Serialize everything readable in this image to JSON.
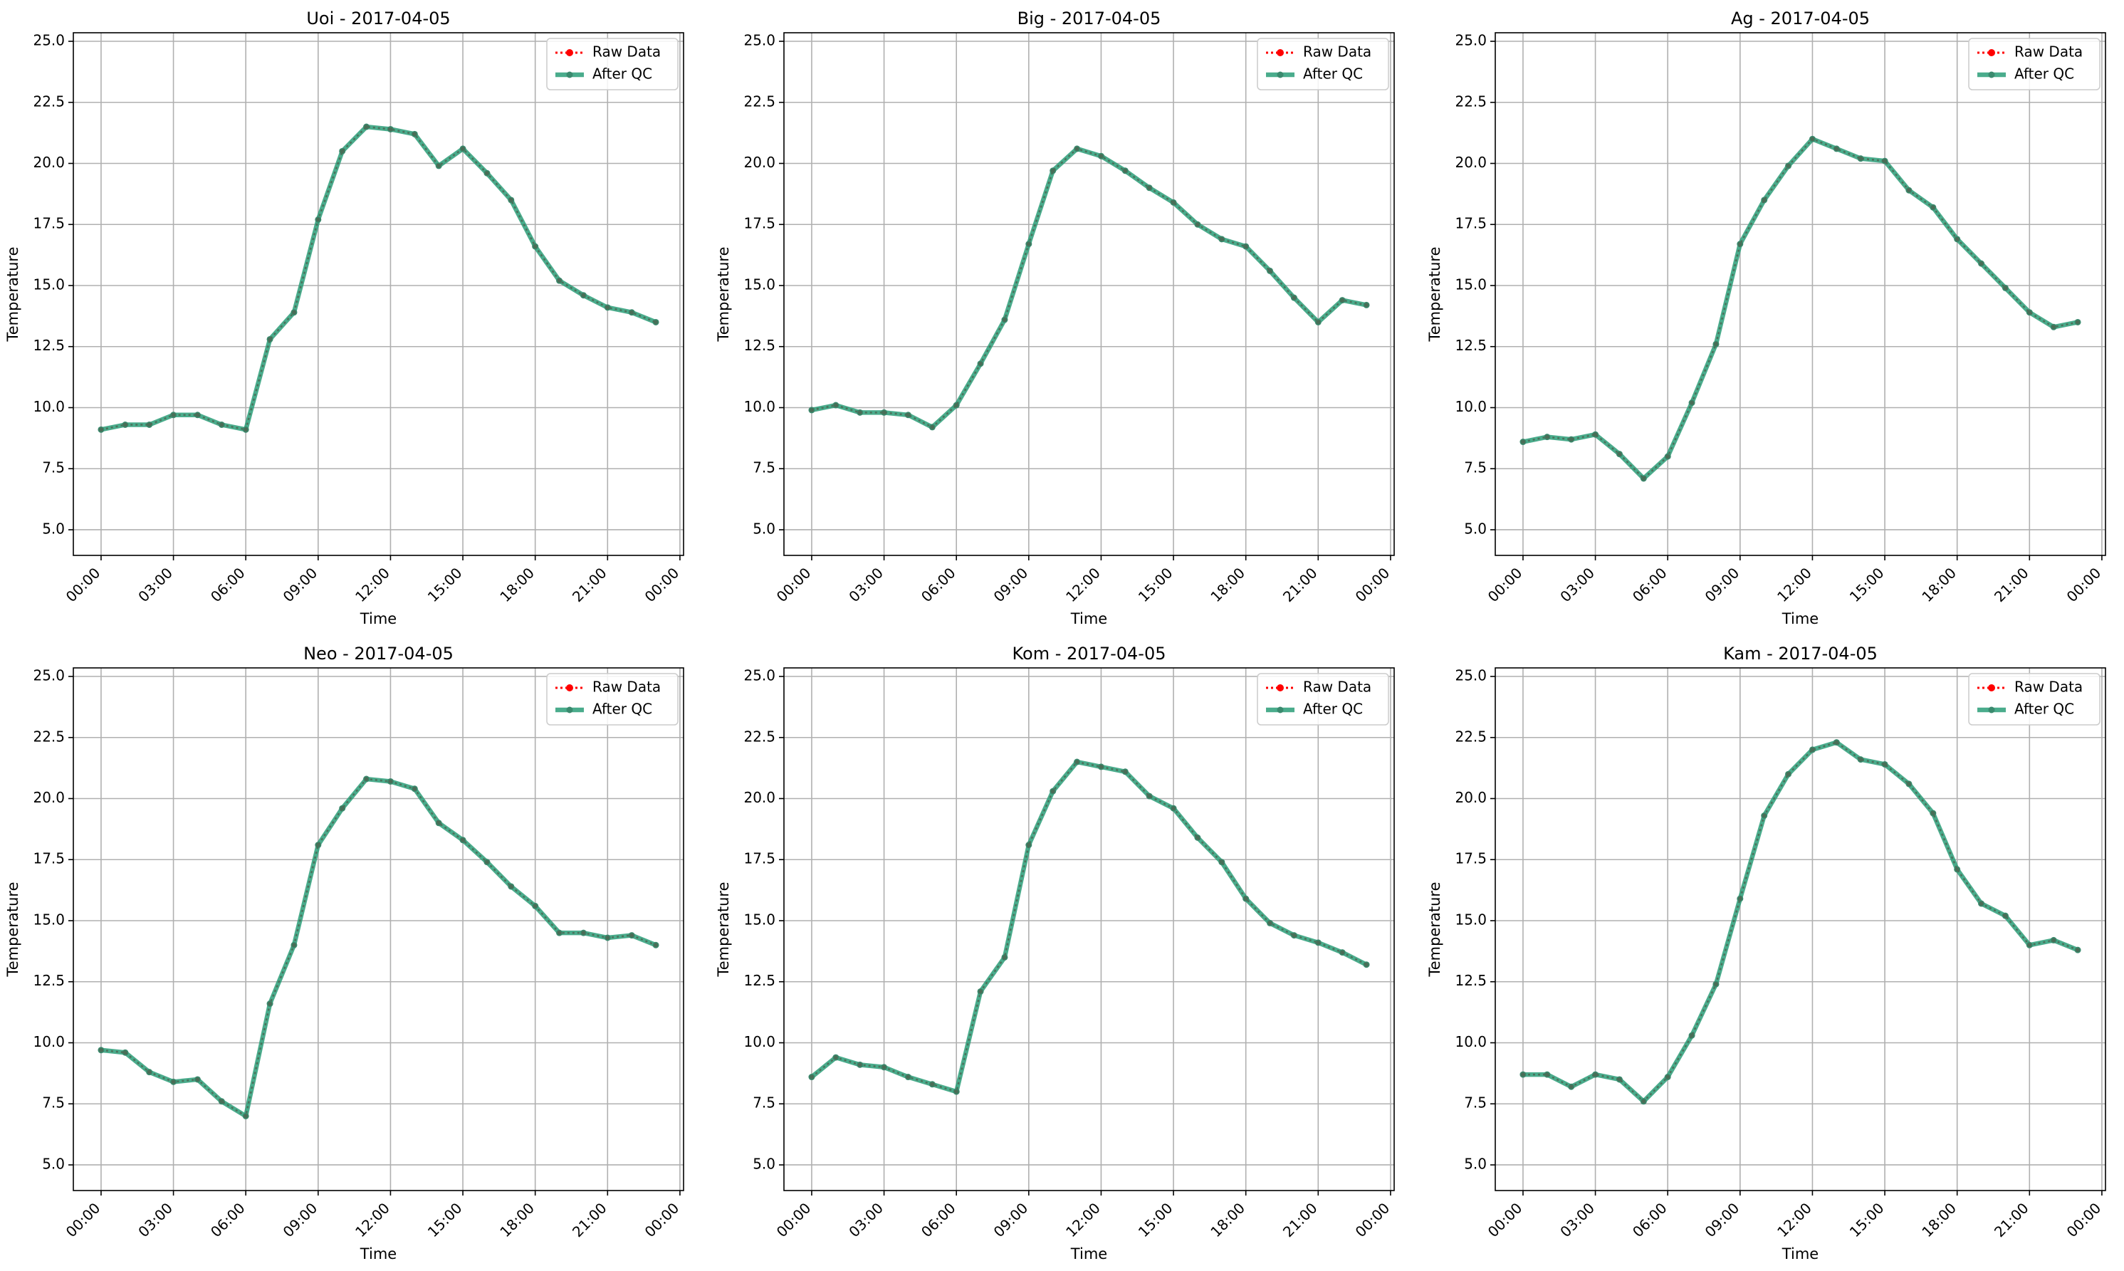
{
  "legend": {
    "raw_label": "Raw Data",
    "qc_label": "After QC"
  },
  "colors": {
    "raw": "#ff0000",
    "qc": "#2a9d78",
    "qc_marker": "#3a8a6e",
    "overlap": "#4a6b55",
    "grid": "#b0b0b0",
    "axis": "#000000"
  },
  "chart_data": [
    {
      "type": "line",
      "title": "Uoi - 2017-04-05",
      "xlabel": "Time",
      "ylabel": "Temperature",
      "xlim": [
        -1.15,
        24.15
      ],
      "ylim": [
        3.95,
        25.35
      ],
      "grid": true,
      "legend_position": "top-right",
      "xtick_values": [
        0,
        3,
        6,
        9,
        12,
        15,
        18,
        21,
        24
      ],
      "xtick_labels": [
        "00:00",
        "03:00",
        "06:00",
        "09:00",
        "12:00",
        "15:00",
        "18:00",
        "21:00",
        "00:00"
      ],
      "ytick_values": [
        5.0,
        7.5,
        10.0,
        12.5,
        15.0,
        17.5,
        20.0,
        22.5,
        25.0
      ],
      "ytick_labels": [
        "5.0",
        "7.5",
        "10.0",
        "12.5",
        "15.0",
        "17.5",
        "20.0",
        "22.5",
        "25.0"
      ],
      "x": [
        0,
        1,
        2,
        3,
        4,
        5,
        6,
        7,
        8,
        9,
        10,
        11,
        12,
        13,
        14,
        15,
        16,
        17,
        18,
        19,
        20,
        21,
        22,
        23
      ],
      "series": [
        {
          "name": "Raw Data",
          "values": [
            9.1,
            9.3,
            9.3,
            9.7,
            9.7,
            9.3,
            9.1,
            12.8,
            13.9,
            17.7,
            20.5,
            21.5,
            21.4,
            21.2,
            19.9,
            20.6,
            19.6,
            18.5,
            16.6,
            15.2,
            14.6,
            14.1,
            13.9,
            13.5
          ]
        },
        {
          "name": "After QC",
          "values": [
            9.1,
            9.3,
            9.3,
            9.7,
            9.7,
            9.3,
            9.1,
            12.8,
            13.9,
            17.7,
            20.5,
            21.5,
            21.4,
            21.2,
            19.9,
            20.6,
            19.6,
            18.5,
            16.6,
            15.2,
            14.6,
            14.1,
            13.9,
            13.5
          ]
        }
      ]
    },
    {
      "type": "line",
      "title": "Big - 2017-04-05",
      "xlabel": "Time",
      "ylabel": "Temperature",
      "xlim": [
        -1.15,
        24.15
      ],
      "ylim": [
        3.95,
        25.35
      ],
      "grid": true,
      "legend_position": "top-right",
      "xtick_values": [
        0,
        3,
        6,
        9,
        12,
        15,
        18,
        21,
        24
      ],
      "xtick_labels": [
        "00:00",
        "03:00",
        "06:00",
        "09:00",
        "12:00",
        "15:00",
        "18:00",
        "21:00",
        "00:00"
      ],
      "ytick_values": [
        5.0,
        7.5,
        10.0,
        12.5,
        15.0,
        17.5,
        20.0,
        22.5,
        25.0
      ],
      "ytick_labels": [
        "5.0",
        "7.5",
        "10.0",
        "12.5",
        "15.0",
        "17.5",
        "20.0",
        "22.5",
        "25.0"
      ],
      "x": [
        0,
        1,
        2,
        3,
        4,
        5,
        6,
        7,
        8,
        9,
        10,
        11,
        12,
        13,
        14,
        15,
        16,
        17,
        18,
        19,
        20,
        21,
        22,
        23
      ],
      "series": [
        {
          "name": "Raw Data",
          "values": [
            9.9,
            10.1,
            9.8,
            9.8,
            9.7,
            9.2,
            10.1,
            11.8,
            13.6,
            16.7,
            19.7,
            20.6,
            20.3,
            19.7,
            19.0,
            18.4,
            17.5,
            16.9,
            16.6,
            15.6,
            14.5,
            13.5,
            14.4,
            14.2
          ]
        },
        {
          "name": "After QC",
          "values": [
            9.9,
            10.1,
            9.8,
            9.8,
            9.7,
            9.2,
            10.1,
            11.8,
            13.6,
            16.7,
            19.7,
            20.6,
            20.3,
            19.7,
            19.0,
            18.4,
            17.5,
            16.9,
            16.6,
            15.6,
            14.5,
            13.5,
            14.4,
            14.2
          ]
        }
      ]
    },
    {
      "type": "line",
      "title": "Ag - 2017-04-05",
      "xlabel": "Time",
      "ylabel": "Temperature",
      "xlim": [
        -1.15,
        24.15
      ],
      "ylim": [
        3.95,
        25.35
      ],
      "grid": true,
      "legend_position": "top-right",
      "xtick_values": [
        0,
        3,
        6,
        9,
        12,
        15,
        18,
        21,
        24
      ],
      "xtick_labels": [
        "00:00",
        "03:00",
        "06:00",
        "09:00",
        "12:00",
        "15:00",
        "18:00",
        "21:00",
        "00:00"
      ],
      "ytick_values": [
        5.0,
        7.5,
        10.0,
        12.5,
        15.0,
        17.5,
        20.0,
        22.5,
        25.0
      ],
      "ytick_labels": [
        "5.0",
        "7.5",
        "10.0",
        "12.5",
        "15.0",
        "17.5",
        "20.0",
        "22.5",
        "25.0"
      ],
      "x": [
        0,
        1,
        2,
        3,
        4,
        5,
        6,
        7,
        8,
        9,
        10,
        11,
        12,
        13,
        14,
        15,
        16,
        17,
        18,
        19,
        20,
        21,
        22,
        23
      ],
      "series": [
        {
          "name": "Raw Data",
          "values": [
            8.6,
            8.8,
            8.7,
            8.9,
            8.1,
            7.1,
            8.0,
            10.2,
            12.6,
            16.7,
            18.5,
            19.9,
            21.0,
            20.6,
            20.2,
            20.1,
            18.9,
            18.2,
            16.9,
            15.9,
            14.9,
            13.9,
            13.3,
            13.5
          ]
        },
        {
          "name": "After QC",
          "values": [
            8.6,
            8.8,
            8.7,
            8.9,
            8.1,
            7.1,
            8.0,
            10.2,
            12.6,
            16.7,
            18.5,
            19.9,
            21.0,
            20.6,
            20.2,
            20.1,
            18.9,
            18.2,
            16.9,
            15.9,
            14.9,
            13.9,
            13.3,
            13.5
          ]
        }
      ]
    },
    {
      "type": "line",
      "title": "Neo - 2017-04-05",
      "xlabel": "Time",
      "ylabel": "Temperature",
      "xlim": [
        -1.15,
        24.15
      ],
      "ylim": [
        3.95,
        25.35
      ],
      "grid": true,
      "legend_position": "top-right",
      "xtick_values": [
        0,
        3,
        6,
        9,
        12,
        15,
        18,
        21,
        24
      ],
      "xtick_labels": [
        "00:00",
        "03:00",
        "06:00",
        "09:00",
        "12:00",
        "15:00",
        "18:00",
        "21:00",
        "00:00"
      ],
      "ytick_values": [
        5.0,
        7.5,
        10.0,
        12.5,
        15.0,
        17.5,
        20.0,
        22.5,
        25.0
      ],
      "ytick_labels": [
        "5.0",
        "7.5",
        "10.0",
        "12.5",
        "15.0",
        "17.5",
        "20.0",
        "22.5",
        "25.0"
      ],
      "x": [
        0,
        1,
        2,
        3,
        4,
        5,
        6,
        7,
        8,
        9,
        10,
        11,
        12,
        13,
        14,
        15,
        16,
        17,
        18,
        19,
        20,
        21,
        22,
        23
      ],
      "series": [
        {
          "name": "Raw Data",
          "values": [
            9.7,
            9.6,
            8.8,
            8.4,
            8.5,
            7.6,
            7.0,
            11.6,
            14.0,
            18.1,
            19.6,
            20.8,
            20.7,
            20.4,
            19.0,
            18.3,
            17.4,
            16.4,
            15.6,
            14.5,
            14.5,
            14.3,
            14.4,
            14.0
          ]
        },
        {
          "name": "After QC",
          "values": [
            9.7,
            9.6,
            8.8,
            8.4,
            8.5,
            7.6,
            7.0,
            11.6,
            14.0,
            18.1,
            19.6,
            20.8,
            20.7,
            20.4,
            19.0,
            18.3,
            17.4,
            16.4,
            15.6,
            14.5,
            14.5,
            14.3,
            14.4,
            14.0
          ]
        }
      ]
    },
    {
      "type": "line",
      "title": "Kom - 2017-04-05",
      "xlabel": "Time",
      "ylabel": "Temperature",
      "xlim": [
        -1.15,
        24.15
      ],
      "ylim": [
        3.95,
        25.35
      ],
      "grid": true,
      "legend_position": "top-right",
      "xtick_values": [
        0,
        3,
        6,
        9,
        12,
        15,
        18,
        21,
        24
      ],
      "xtick_labels": [
        "00:00",
        "03:00",
        "06:00",
        "09:00",
        "12:00",
        "15:00",
        "18:00",
        "21:00",
        "00:00"
      ],
      "ytick_values": [
        5.0,
        7.5,
        10.0,
        12.5,
        15.0,
        17.5,
        20.0,
        22.5,
        25.0
      ],
      "ytick_labels": [
        "5.0",
        "7.5",
        "10.0",
        "12.5",
        "15.0",
        "17.5",
        "20.0",
        "22.5",
        "25.0"
      ],
      "x": [
        0,
        1,
        2,
        3,
        4,
        5,
        6,
        7,
        8,
        9,
        10,
        11,
        12,
        13,
        14,
        15,
        16,
        17,
        18,
        19,
        20,
        21,
        22,
        23
      ],
      "series": [
        {
          "name": "Raw Data",
          "values": [
            8.6,
            9.4,
            9.1,
            9.0,
            8.6,
            8.3,
            8.0,
            12.1,
            13.5,
            18.1,
            20.3,
            21.5,
            21.3,
            21.1,
            20.1,
            19.6,
            18.4,
            17.4,
            15.9,
            14.9,
            14.4,
            14.1,
            13.7,
            13.2
          ]
        },
        {
          "name": "After QC",
          "values": [
            8.6,
            9.4,
            9.1,
            9.0,
            8.6,
            8.3,
            8.0,
            12.1,
            13.5,
            18.1,
            20.3,
            21.5,
            21.3,
            21.1,
            20.1,
            19.6,
            18.4,
            17.4,
            15.9,
            14.9,
            14.4,
            14.1,
            13.7,
            13.2
          ]
        }
      ]
    },
    {
      "type": "line",
      "title": "Kam - 2017-04-05",
      "xlabel": "Time",
      "ylabel": "Temperature",
      "xlim": [
        -1.15,
        24.15
      ],
      "ylim": [
        3.95,
        25.35
      ],
      "grid": true,
      "legend_position": "top-right",
      "xtick_values": [
        0,
        3,
        6,
        9,
        12,
        15,
        18,
        21,
        24
      ],
      "xtick_labels": [
        "00:00",
        "03:00",
        "06:00",
        "09:00",
        "12:00",
        "15:00",
        "18:00",
        "21:00",
        "00:00"
      ],
      "ytick_values": [
        5.0,
        7.5,
        10.0,
        12.5,
        15.0,
        17.5,
        20.0,
        22.5,
        25.0
      ],
      "ytick_labels": [
        "5.0",
        "7.5",
        "10.0",
        "12.5",
        "15.0",
        "17.5",
        "20.0",
        "22.5",
        "25.0"
      ],
      "x": [
        0,
        1,
        2,
        3,
        4,
        5,
        6,
        7,
        8,
        9,
        10,
        11,
        12,
        13,
        14,
        15,
        16,
        17,
        18,
        19,
        20,
        21,
        22,
        23
      ],
      "series": [
        {
          "name": "Raw Data",
          "values": [
            8.7,
            8.7,
            8.2,
            8.7,
            8.5,
            7.6,
            8.6,
            10.3,
            12.4,
            15.9,
            19.3,
            21.0,
            22.0,
            22.3,
            21.6,
            21.4,
            20.6,
            19.4,
            17.1,
            15.7,
            15.2,
            14.0,
            14.2,
            13.8
          ]
        },
        {
          "name": "After QC",
          "values": [
            8.7,
            8.7,
            8.2,
            8.7,
            8.5,
            7.6,
            8.6,
            10.3,
            12.4,
            15.9,
            19.3,
            21.0,
            22.0,
            22.3,
            21.6,
            21.4,
            20.6,
            19.4,
            17.1,
            15.7,
            15.2,
            14.0,
            14.2,
            13.8
          ]
        }
      ]
    }
  ]
}
